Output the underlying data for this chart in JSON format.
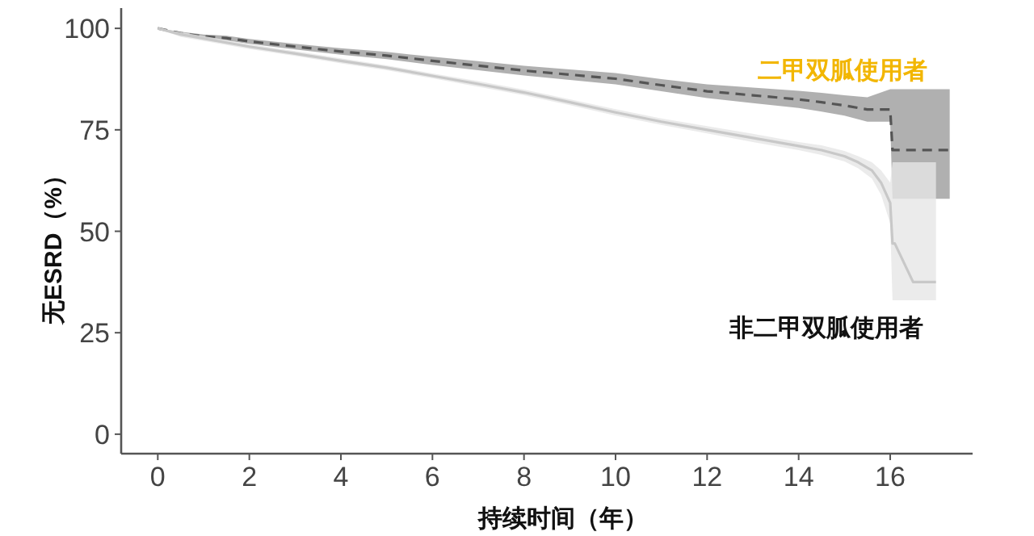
{
  "chart_data": {
    "type": "line",
    "xlabel": "持续时间（年）",
    "ylabel": "无ESRD（%）",
    "xlim": [
      -0.8,
      17.8
    ],
    "ylim": [
      -4.8,
      105
    ],
    "xticks": [
      0,
      2,
      4,
      6,
      8,
      10,
      12,
      14,
      16
    ],
    "yticks": [
      0,
      25,
      50,
      75,
      100
    ],
    "grid": false,
    "series": [
      {
        "name": "二甲双胍使用者",
        "color": "#555555",
        "line_style": "dashed",
        "x": [
          0,
          0.5,
          1,
          1.5,
          2,
          3,
          4,
          5,
          6,
          7,
          8,
          9,
          10,
          11,
          12,
          13,
          14,
          14.5,
          15,
          15.5,
          16,
          16.05,
          17.3
        ],
        "values": [
          100,
          98.8,
          98,
          97.6,
          96.8,
          95.5,
          94.3,
          93.3,
          92,
          90.8,
          89.6,
          88.6,
          87.6,
          86,
          84.5,
          83.5,
          82.5,
          81.8,
          81,
          80,
          80,
          70,
          70
        ],
        "lower": [
          100,
          98.4,
          97.5,
          97,
          96.2,
          94.8,
          93.5,
          92.4,
          91,
          89.7,
          88.4,
          87.3,
          86.2,
          84.5,
          82.8,
          81.6,
          80.4,
          79.5,
          78.5,
          77,
          77,
          58,
          58
        ],
        "upper": [
          100,
          99.2,
          98.5,
          98.2,
          97.4,
          96.2,
          95.1,
          94.2,
          93,
          91.9,
          90.8,
          89.9,
          89,
          87.5,
          86.2,
          85.4,
          84.6,
          84.1,
          83.5,
          83,
          85,
          85,
          85
        ]
      },
      {
        "name": "非二甲双胍使用者",
        "color": "#c8c8c8",
        "line_style": "solid",
        "x": [
          0,
          0.5,
          1,
          2,
          3,
          4,
          5,
          6,
          7,
          8,
          9,
          10,
          11,
          12,
          13,
          14,
          14.5,
          15,
          15.3,
          15.6,
          15.8,
          16,
          16.05,
          16.1,
          16.5,
          17
        ],
        "values": [
          100,
          98.5,
          97.5,
          95.5,
          93.8,
          92,
          90.3,
          88.3,
          86.3,
          84.2,
          81.8,
          79.3,
          77,
          75,
          73,
          71,
          70,
          68.5,
          67,
          65,
          62,
          57,
          47,
          47,
          37.5,
          37.5
        ],
        "lower": [
          100,
          97.9,
          96.9,
          94.9,
          93.2,
          91.4,
          89.7,
          87.7,
          85.6,
          83.5,
          81.1,
          78.5,
          76.2,
          74.1,
          72,
          70,
          68.8,
          67.2,
          65.5,
          63,
          59,
          52,
          33,
          33,
          33,
          33
        ],
        "upper": [
          100,
          99.1,
          98.1,
          96.1,
          94.4,
          92.6,
          90.9,
          88.9,
          87,
          84.9,
          82.5,
          80.1,
          77.8,
          75.9,
          74,
          72,
          71.2,
          69.8,
          68.5,
          67,
          65,
          62,
          67,
          67,
          67,
          67
        ]
      }
    ]
  }
}
